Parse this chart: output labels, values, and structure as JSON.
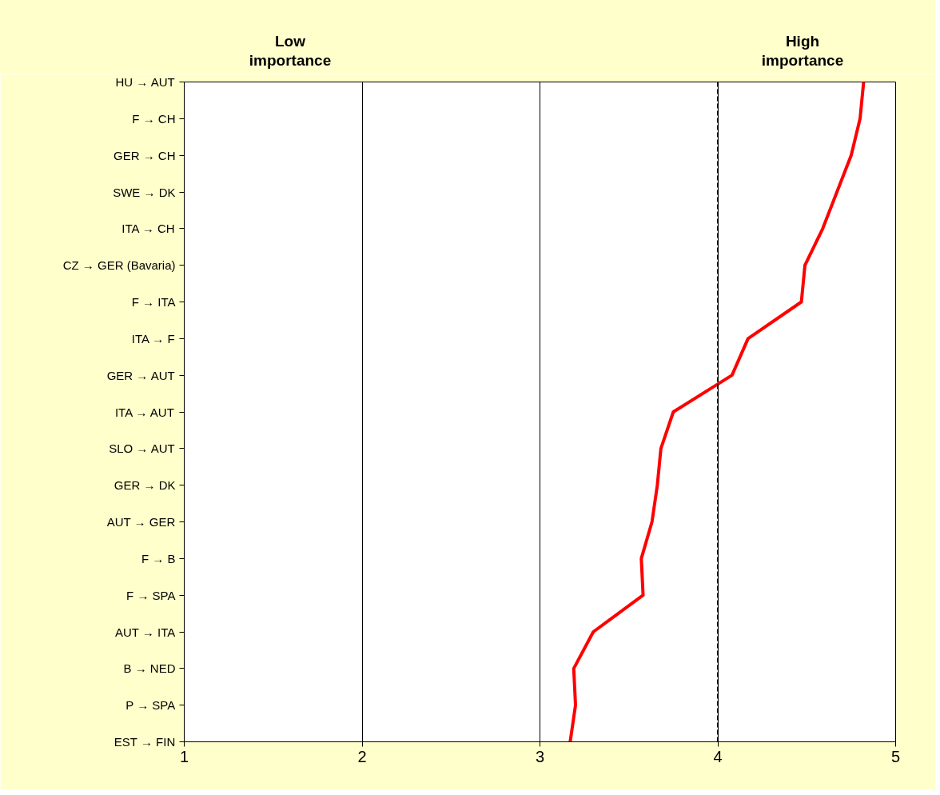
{
  "chart_data": {
    "type": "line",
    "orientation": "horizontal",
    "categories": [
      "HU → AUT",
      "F → CH",
      "GER → CH",
      "SWE → DK",
      "ITA → CH",
      "CZ → GER (Bavaria)",
      "F → ITA",
      "ITA → F",
      "GER → AUT",
      "ITA → AUT",
      "SLO → AUT",
      "GER → DK",
      "AUT → GER",
      "F → B",
      "F → SPA",
      "AUT → ITA",
      "B → NED",
      "P → SPA",
      "EST → FIN"
    ],
    "series": [
      {
        "color": "#ff0000",
        "values": [
          4.82,
          4.8,
          4.75,
          4.67,
          4.59,
          4.49,
          4.47,
          4.17,
          4.08,
          3.75,
          3.68,
          3.66,
          3.63,
          3.57,
          3.58,
          3.3,
          3.19,
          3.2,
          3.17
        ]
      }
    ],
    "xlim": [
      1,
      5
    ],
    "xticks": [
      1,
      2,
      3,
      4,
      5
    ],
    "grid": "x",
    "marker": "none",
    "line_style": "solid",
    "ref_lines": [
      {
        "axis": "x",
        "value": 4,
        "line_style": "dashed",
        "color": "#000000"
      }
    ],
    "annotations": [
      "Low importance",
      "High importance"
    ]
  }
}
